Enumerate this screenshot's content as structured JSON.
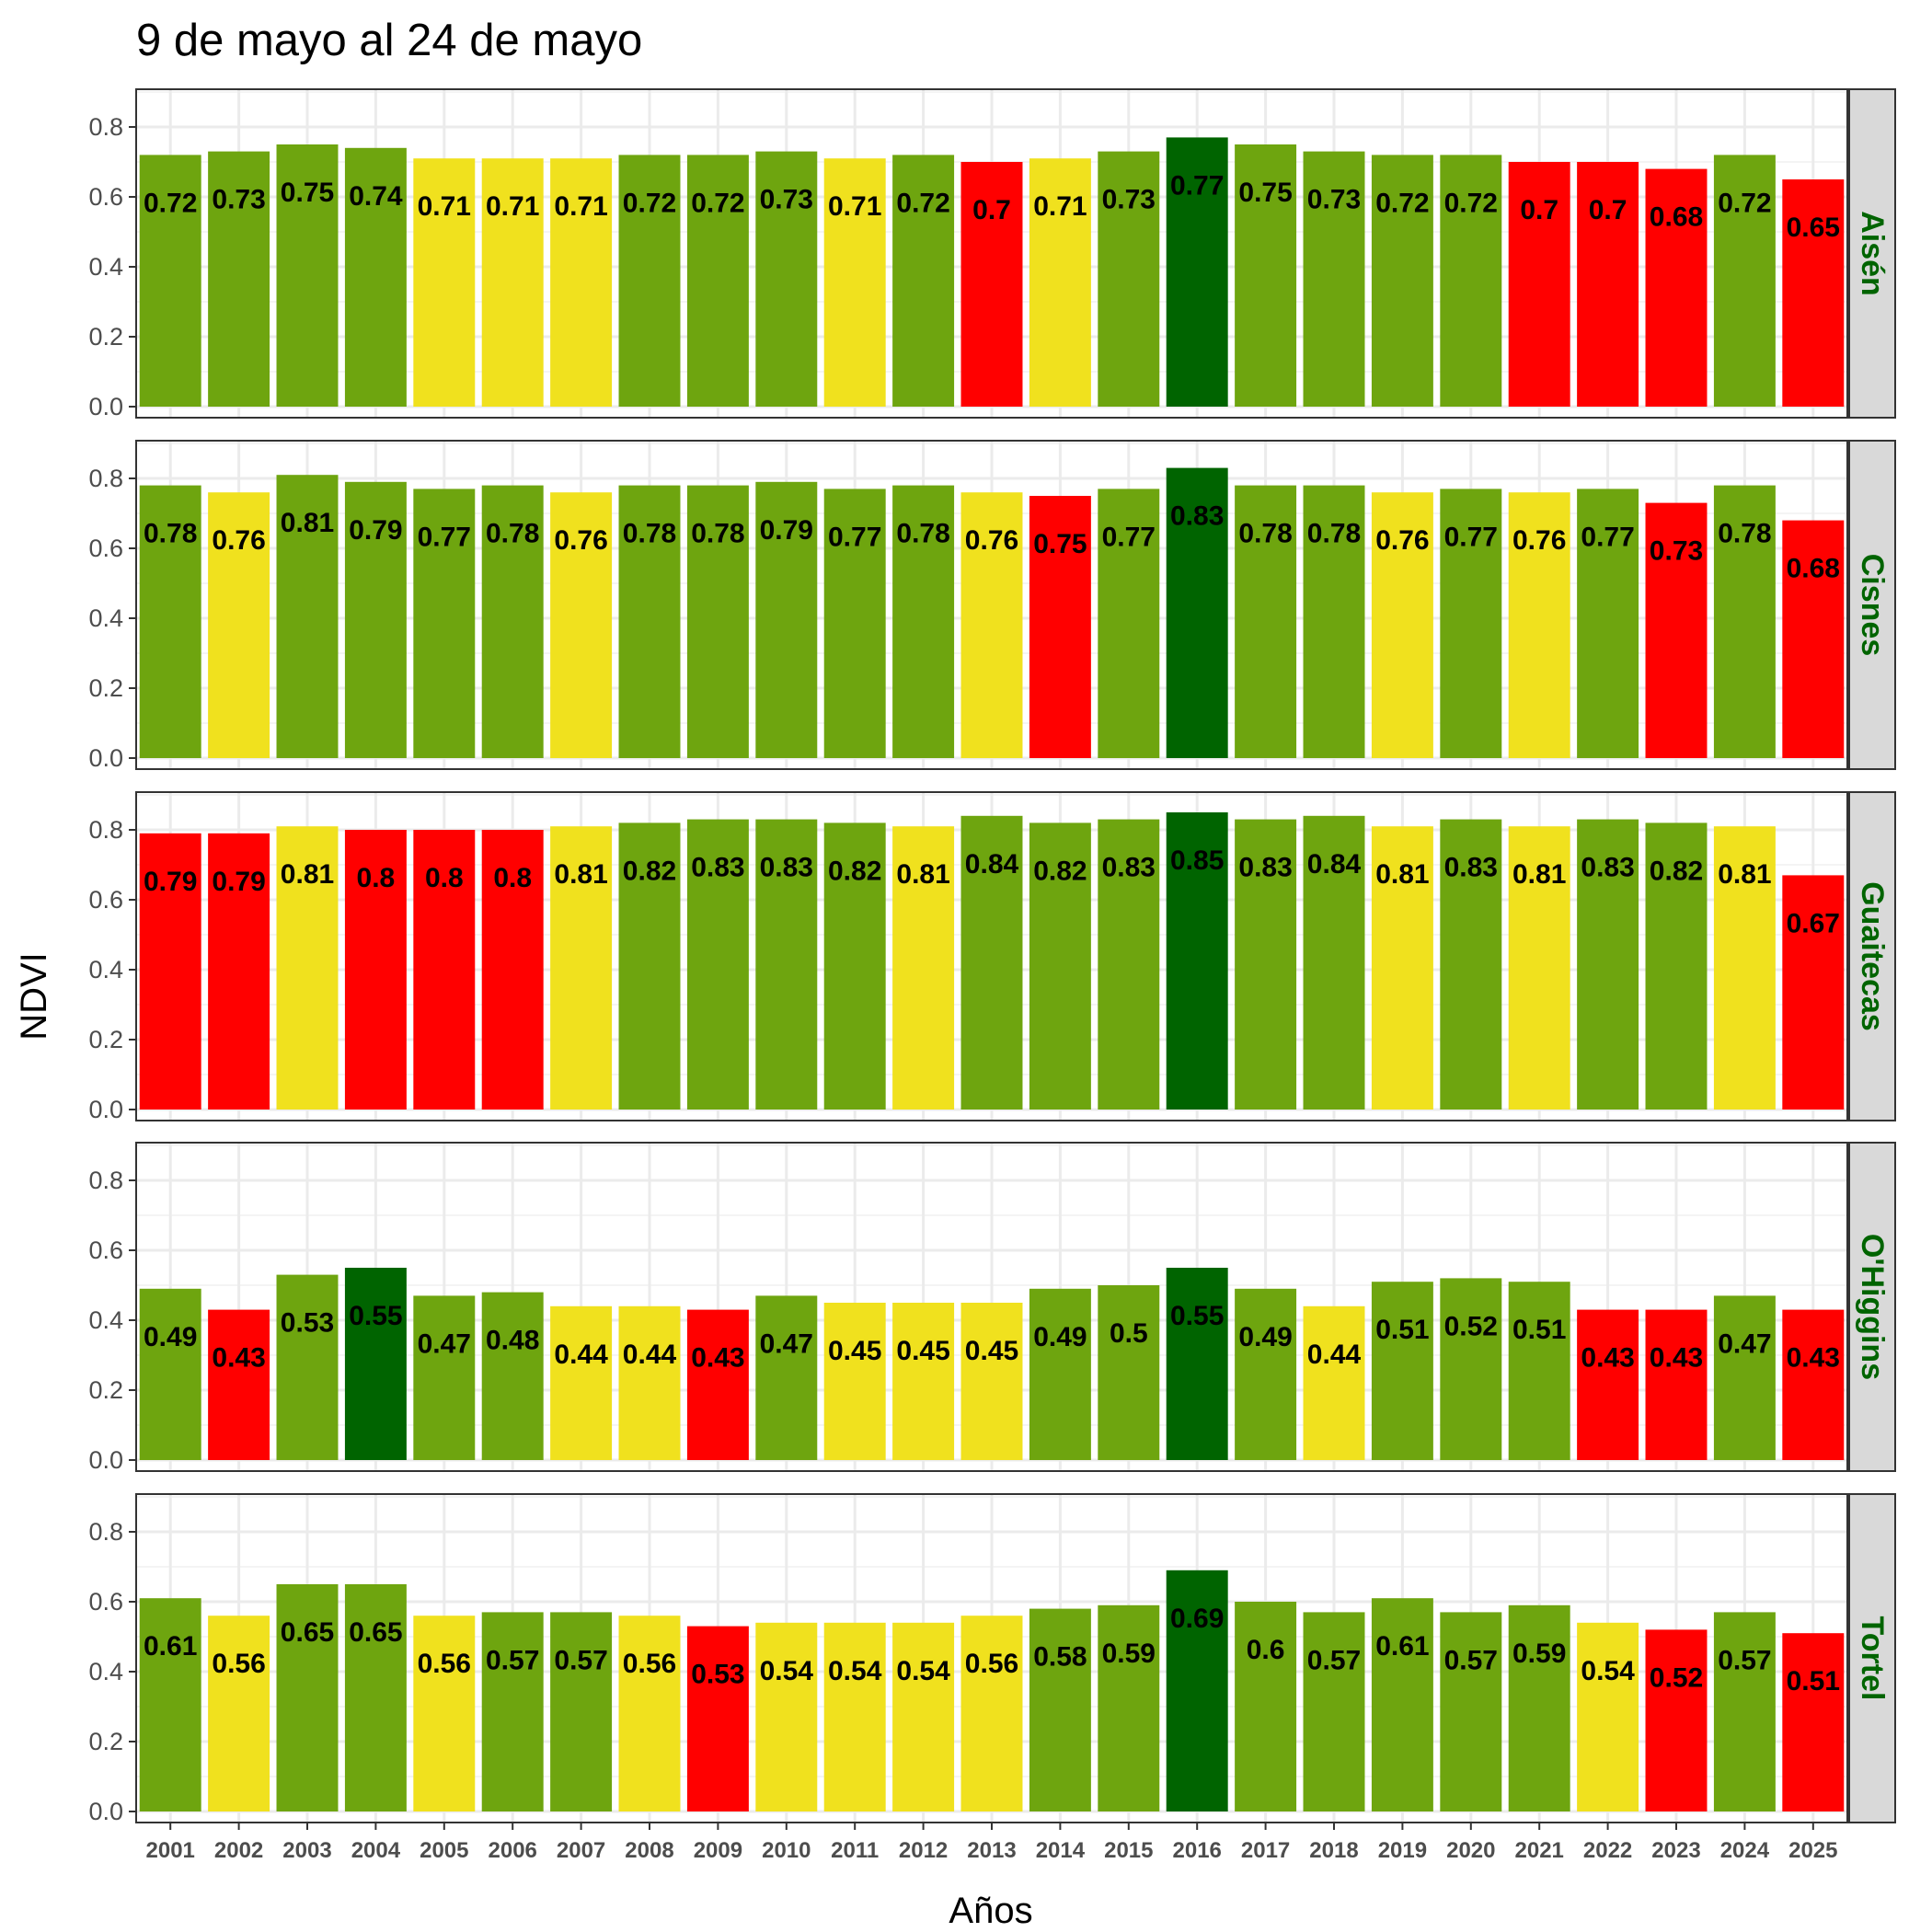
{
  "chart_data": {
    "type": "bar",
    "title": "9 de mayo al 24 de mayo",
    "xlabel": "Años",
    "ylabel": "NDVI",
    "ylim": [
      0,
      0.9
    ],
    "yticks": [
      "0.0",
      "0.2",
      "0.4",
      "0.6",
      "0.8"
    ],
    "categories": [
      "2001",
      "2002",
      "2003",
      "2004",
      "2005",
      "2006",
      "2007",
      "2008",
      "2009",
      "2010",
      "2011",
      "2012",
      "2013",
      "2014",
      "2015",
      "2016",
      "2017",
      "2018",
      "2019",
      "2020",
      "2021",
      "2022",
      "2023",
      "2024",
      "2025"
    ],
    "grid": true,
    "legend": "none",
    "colors": {
      "red": "#ff0000",
      "yellow": "#f0e11e",
      "green": "#6ea50f",
      "darkgreen": "#006400"
    },
    "panels": [
      {
        "name": "Aisén",
        "values": [
          "0.72",
          "0.73",
          "0.75",
          "0.74",
          "0.71",
          "0.71",
          "0.71",
          "0.72",
          "0.72",
          "0.73",
          "0.71",
          "0.72",
          "0.7",
          "0.71",
          "0.73",
          "0.77",
          "0.75",
          "0.73",
          "0.72",
          "0.72",
          "0.7",
          "0.7",
          "0.68",
          "0.72",
          "0.65"
        ],
        "colors": [
          "green",
          "green",
          "green",
          "green",
          "yellow",
          "yellow",
          "yellow",
          "green",
          "green",
          "green",
          "yellow",
          "green",
          "red",
          "yellow",
          "green",
          "darkgreen",
          "green",
          "green",
          "green",
          "green",
          "red",
          "red",
          "red",
          "green",
          "red"
        ]
      },
      {
        "name": "Cisnes",
        "values": [
          "0.78",
          "0.76",
          "0.81",
          "0.79",
          "0.77",
          "0.78",
          "0.76",
          "0.78",
          "0.78",
          "0.79",
          "0.77",
          "0.78",
          "0.76",
          "0.75",
          "0.77",
          "0.83",
          "0.78",
          "0.78",
          "0.76",
          "0.77",
          "0.76",
          "0.77",
          "0.73",
          "0.78",
          "0.68"
        ],
        "colors": [
          "green",
          "yellow",
          "green",
          "green",
          "green",
          "green",
          "yellow",
          "green",
          "green",
          "green",
          "green",
          "green",
          "yellow",
          "red",
          "green",
          "darkgreen",
          "green",
          "green",
          "yellow",
          "green",
          "yellow",
          "green",
          "red",
          "green",
          "red"
        ]
      },
      {
        "name": "Guaitecas",
        "values": [
          "0.79",
          "0.79",
          "0.81",
          "0.8",
          "0.8",
          "0.8",
          "0.81",
          "0.82",
          "0.83",
          "0.83",
          "0.82",
          "0.81",
          "0.84",
          "0.82",
          "0.83",
          "0.85",
          "0.83",
          "0.84",
          "0.81",
          "0.83",
          "0.81",
          "0.83",
          "0.82",
          "0.81",
          "0.67"
        ],
        "colors": [
          "red",
          "red",
          "yellow",
          "red",
          "red",
          "red",
          "yellow",
          "green",
          "green",
          "green",
          "green",
          "yellow",
          "green",
          "green",
          "green",
          "darkgreen",
          "green",
          "green",
          "yellow",
          "green",
          "yellow",
          "green",
          "green",
          "yellow",
          "red"
        ]
      },
      {
        "name": "O'Higgins",
        "values": [
          "0.49",
          "0.43",
          "0.53",
          "0.55",
          "0.47",
          "0.48",
          "0.44",
          "0.44",
          "0.43",
          "0.47",
          "0.45",
          "0.45",
          "0.45",
          "0.49",
          "0.5",
          "0.55",
          "0.49",
          "0.44",
          "0.51",
          "0.52",
          "0.51",
          "0.43",
          "0.43",
          "0.47",
          "0.43"
        ],
        "colors": [
          "green",
          "red",
          "green",
          "darkgreen",
          "green",
          "green",
          "yellow",
          "yellow",
          "red",
          "green",
          "yellow",
          "yellow",
          "yellow",
          "green",
          "green",
          "darkgreen",
          "green",
          "yellow",
          "green",
          "green",
          "green",
          "red",
          "red",
          "green",
          "red"
        ]
      },
      {
        "name": "Tortel",
        "values": [
          "0.61",
          "0.56",
          "0.65",
          "0.65",
          "0.56",
          "0.57",
          "0.57",
          "0.56",
          "0.53",
          "0.54",
          "0.54",
          "0.54",
          "0.56",
          "0.58",
          "0.59",
          "0.69",
          "0.6",
          "0.57",
          "0.61",
          "0.57",
          "0.59",
          "0.54",
          "0.52",
          "0.57",
          "0.51"
        ],
        "colors": [
          "green",
          "yellow",
          "green",
          "green",
          "yellow",
          "green",
          "green",
          "yellow",
          "red",
          "yellow",
          "yellow",
          "yellow",
          "yellow",
          "green",
          "green",
          "darkgreen",
          "green",
          "green",
          "green",
          "green",
          "green",
          "yellow",
          "red",
          "green",
          "red"
        ]
      }
    ]
  }
}
